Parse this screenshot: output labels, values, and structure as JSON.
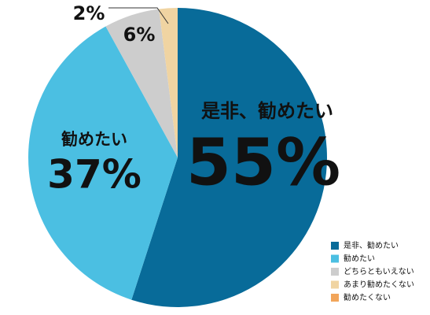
{
  "chart_data": {
    "type": "pie",
    "categories": [
      "是非、勧めたい",
      "勧めたい",
      "どちらともいえない",
      "あまり勧めたくない",
      "勧めたくない"
    ],
    "values": [
      55,
      37,
      6,
      2,
      0
    ],
    "value_labels": [
      "55%",
      "37%",
      "6%",
      "2%",
      null
    ],
    "colors": [
      "#086b99",
      "#4bbfe2",
      "#cdcdcd",
      "#f0d4a2",
      "#f2a55a"
    ],
    "legend": "bottom-right"
  }
}
